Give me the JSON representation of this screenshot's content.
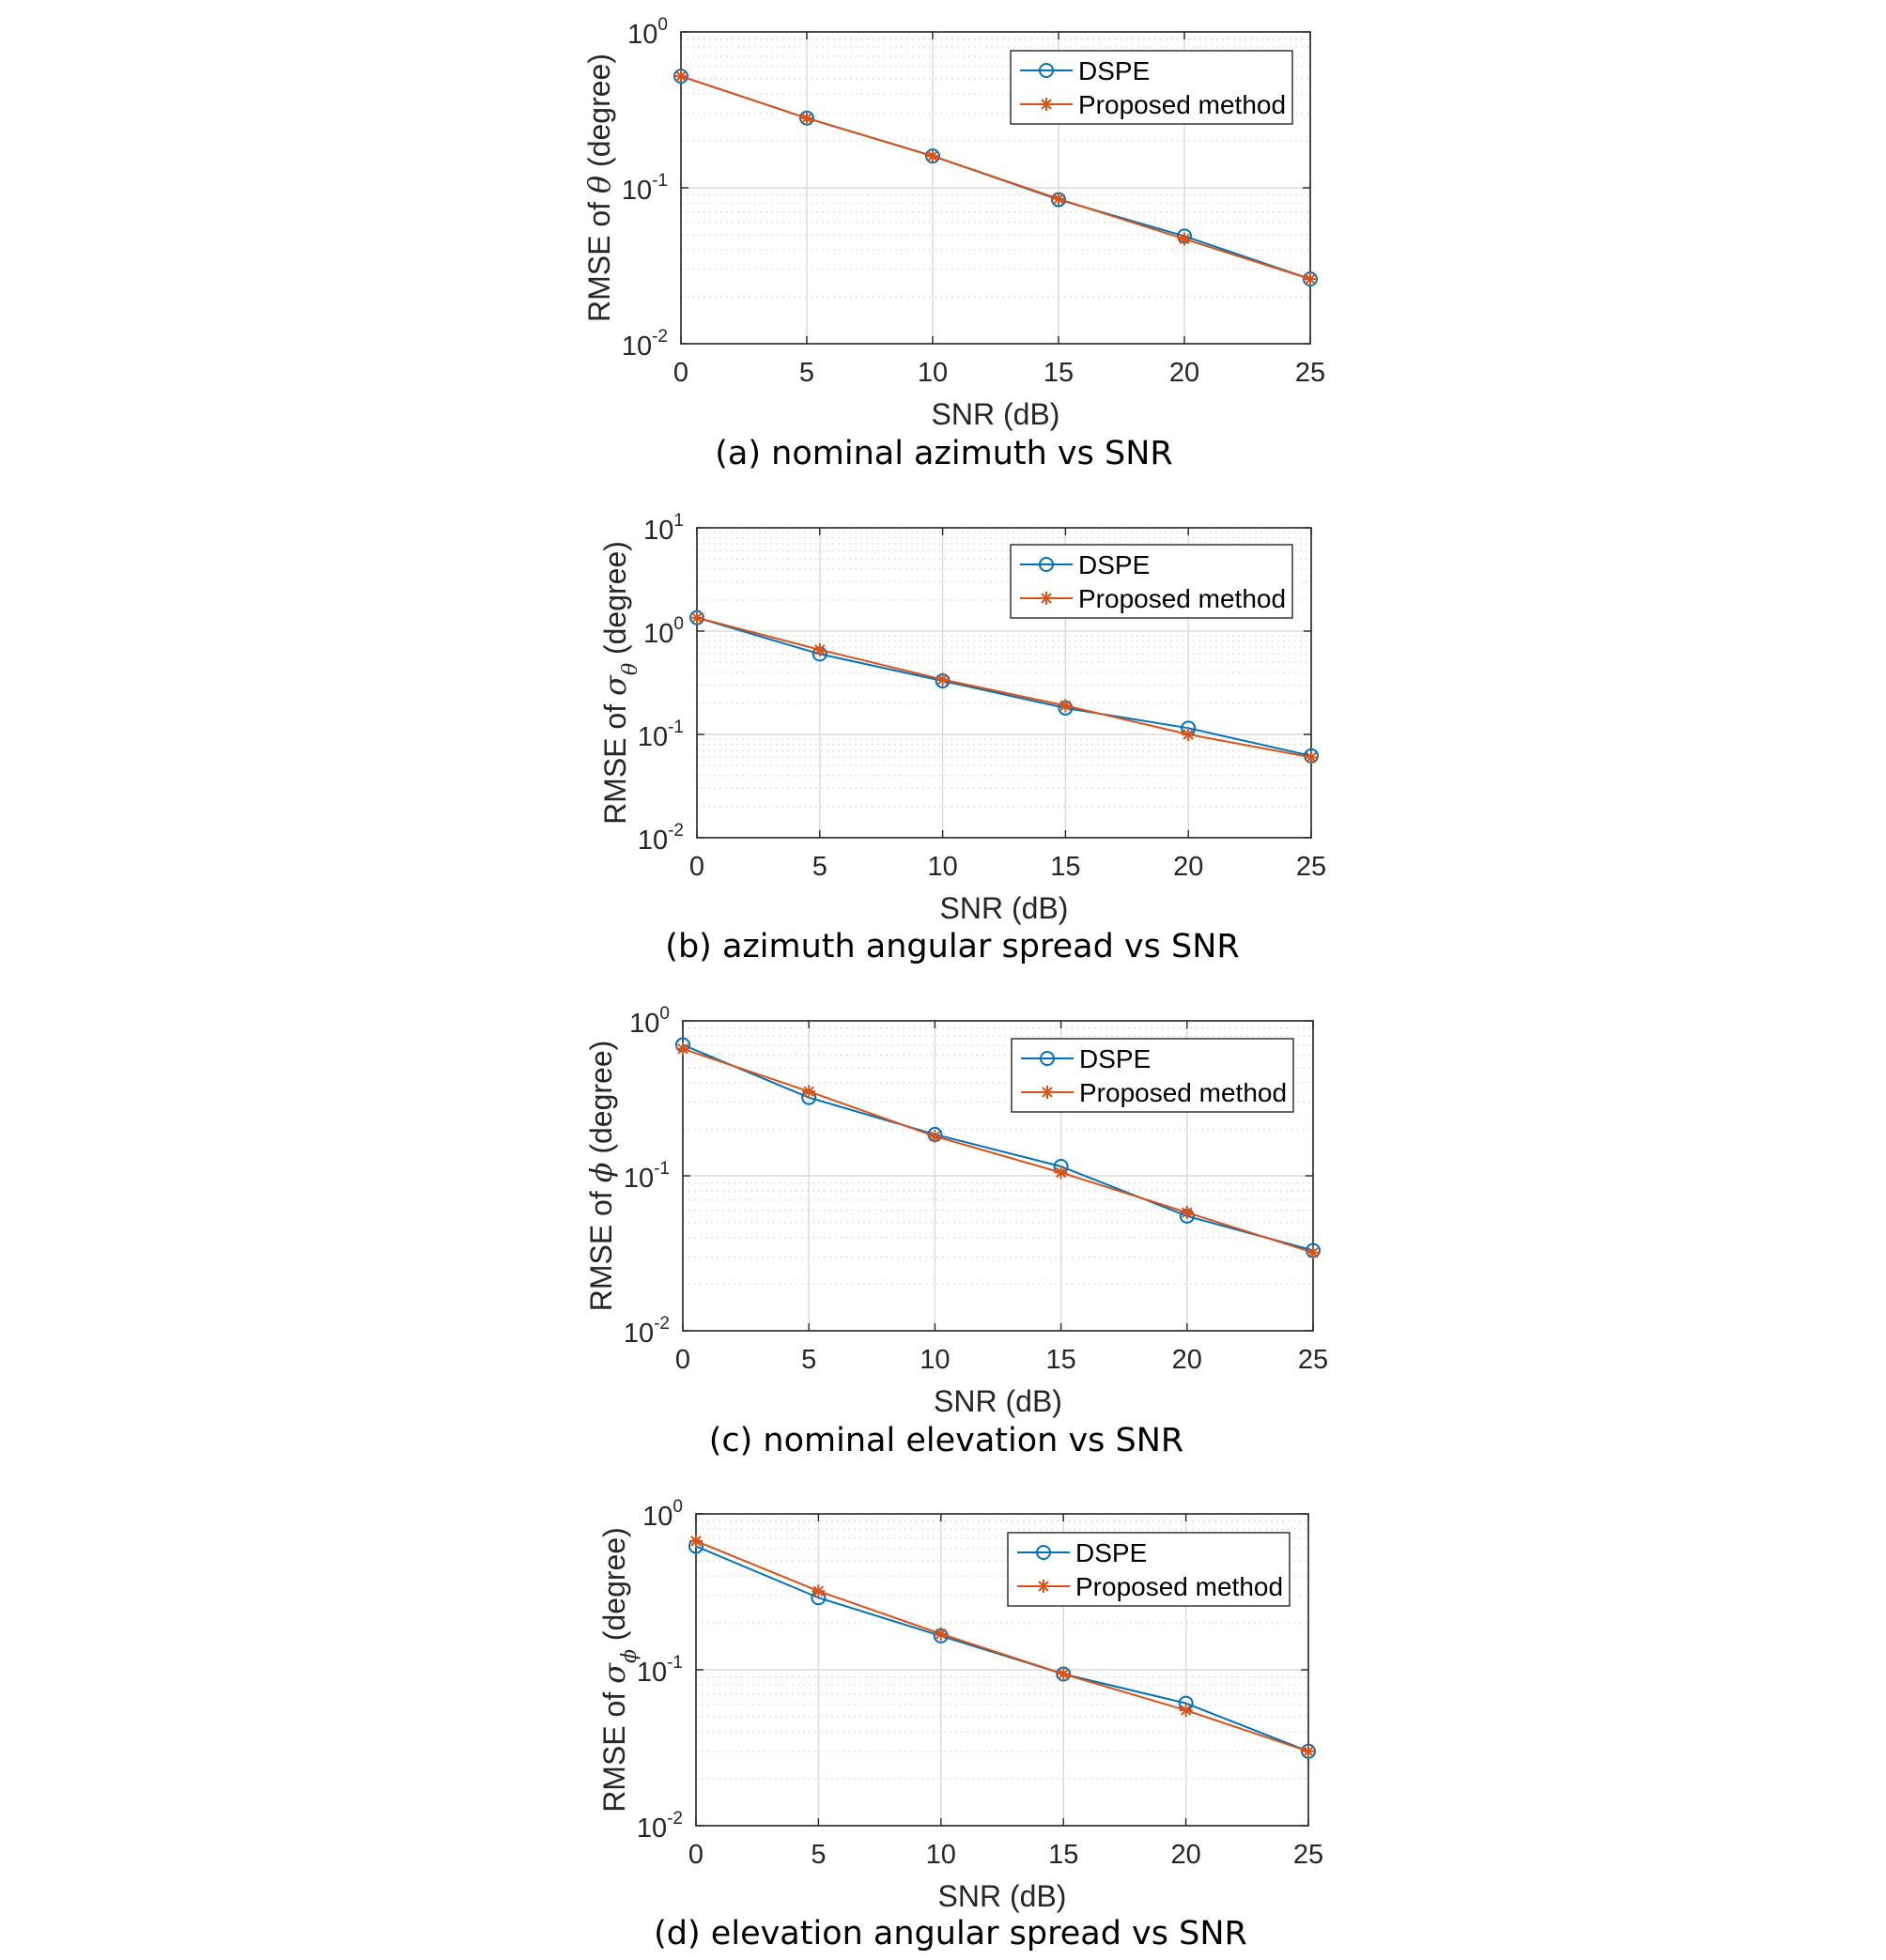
{
  "colors": {
    "dspe": "#0072BD",
    "proposed": "#D95319",
    "grid": "#dcdcdc",
    "axis": "#262626"
  },
  "chart_data": [
    {
      "type": "line",
      "caption": "(a) nominal azimuth vs SNR",
      "xlabel": "SNR (dB)",
      "ylabel_prefix": "RMSE of ",
      "ylabel_symbol": "θ",
      "ylabel_subscript": "",
      "ylabel_suffix": " (degree)",
      "yscale": "log",
      "xlim": [
        0,
        25
      ],
      "ylim": [
        0.01,
        1
      ],
      "xticks": [
        "0",
        "5",
        "10",
        "15",
        "20",
        "25"
      ],
      "yticks": [
        {
          "base": "10",
          "exp": "-2",
          "value": 0.01
        },
        {
          "base": "10",
          "exp": "-1",
          "value": 0.1
        },
        {
          "base": "10",
          "exp": "0",
          "value": 1
        }
      ],
      "grid": true,
      "legend_position": "top-right",
      "x": [
        0,
        5,
        10,
        15,
        20,
        25
      ],
      "series": [
        {
          "name": "DSPE",
          "marker": "circle",
          "values": [
            0.52,
            0.28,
            0.16,
            0.084,
            0.049,
            0.026
          ]
        },
        {
          "name": "Proposed method",
          "marker": "asterisk",
          "values": [
            0.52,
            0.28,
            0.16,
            0.085,
            0.047,
            0.026
          ]
        }
      ]
    },
    {
      "type": "line",
      "caption": "(b) azimuth angular spread vs SNR",
      "xlabel": "SNR (dB)",
      "ylabel_prefix": "RMSE of ",
      "ylabel_symbol": "σ",
      "ylabel_subscript": "θ",
      "ylabel_suffix": " (degree)",
      "yscale": "log",
      "xlim": [
        0,
        25
      ],
      "ylim": [
        0.01,
        10
      ],
      "xticks": [
        "0",
        "5",
        "10",
        "15",
        "20",
        "25"
      ],
      "yticks": [
        {
          "base": "10",
          "exp": "-2",
          "value": 0.01
        },
        {
          "base": "10",
          "exp": "-1",
          "value": 0.1
        },
        {
          "base": "10",
          "exp": "0",
          "value": 1
        },
        {
          "base": "10",
          "exp": "1",
          "value": 10
        }
      ],
      "grid": true,
      "legend_position": "top-right",
      "x": [
        0,
        5,
        10,
        15,
        20,
        25
      ],
      "series": [
        {
          "name": "DSPE",
          "marker": "circle",
          "values": [
            1.35,
            0.6,
            0.33,
            0.18,
            0.115,
            0.062
          ]
        },
        {
          "name": "Proposed method",
          "marker": "asterisk",
          "values": [
            1.35,
            0.66,
            0.34,
            0.19,
            0.1,
            0.06
          ]
        }
      ]
    },
    {
      "type": "line",
      "caption": "(c) nominal elevation vs SNR",
      "xlabel": "SNR (dB)",
      "ylabel_prefix": "RMSE of ",
      "ylabel_symbol": "ϕ",
      "ylabel_subscript": "",
      "ylabel_suffix": " (degree)",
      "yscale": "log",
      "xlim": [
        0,
        25
      ],
      "ylim": [
        0.01,
        1
      ],
      "xticks": [
        "0",
        "5",
        "10",
        "15",
        "20",
        "25"
      ],
      "yticks": [
        {
          "base": "10",
          "exp": "-2",
          "value": 0.01
        },
        {
          "base": "10",
          "exp": "-1",
          "value": 0.1
        },
        {
          "base": "10",
          "exp": "0",
          "value": 1
        }
      ],
      "grid": true,
      "legend_position": "top-right",
      "x": [
        0,
        5,
        10,
        15,
        20,
        25
      ],
      "series": [
        {
          "name": "DSPE",
          "marker": "circle",
          "values": [
            0.7,
            0.32,
            0.185,
            0.115,
            0.055,
            0.033
          ]
        },
        {
          "name": "Proposed method",
          "marker": "asterisk",
          "values": [
            0.66,
            0.35,
            0.18,
            0.105,
            0.058,
            0.032
          ]
        }
      ]
    },
    {
      "type": "line",
      "caption": "(d) elevation angular spread vs SNR",
      "xlabel": "SNR (dB)",
      "ylabel_prefix": "RMSE of ",
      "ylabel_symbol": "σ",
      "ylabel_subscript": "ϕ",
      "ylabel_suffix": " (degree)",
      "yscale": "log",
      "xlim": [
        0,
        25
      ],
      "ylim": [
        0.01,
        1
      ],
      "xticks": [
        "0",
        "5",
        "10",
        "15",
        "20",
        "25"
      ],
      "yticks": [
        {
          "base": "10",
          "exp": "-2",
          "value": 0.01
        },
        {
          "base": "10",
          "exp": "-1",
          "value": 0.1
        },
        {
          "base": "10",
          "exp": "0",
          "value": 1
        }
      ],
      "grid": true,
      "legend_position": "top-right",
      "x": [
        0,
        5,
        10,
        15,
        20,
        25
      ],
      "series": [
        {
          "name": "DSPE",
          "marker": "circle",
          "values": [
            0.62,
            0.29,
            0.165,
            0.094,
            0.061,
            0.03
          ]
        },
        {
          "name": "Proposed method",
          "marker": "asterisk",
          "values": [
            0.67,
            0.32,
            0.17,
            0.094,
            0.055,
            0.03
          ]
        }
      ]
    }
  ]
}
